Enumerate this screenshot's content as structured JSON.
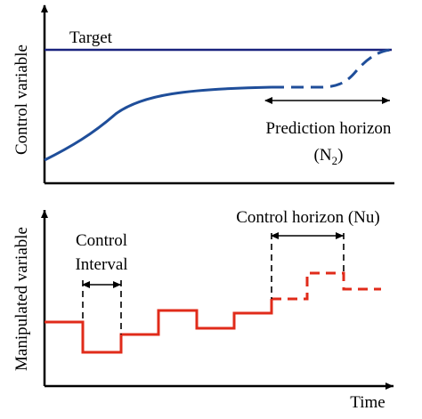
{
  "colors": {
    "target_line": "#1a237e",
    "control_curve": "#1f4e9a",
    "manipulated_signal": "#e02b1a",
    "annotation": "#000000"
  },
  "top_panel": {
    "y_axis_label": "Control variable",
    "target_label": "Target",
    "prediction_label_line1": "Prediction horizon",
    "prediction_label_n": "(N",
    "prediction_label_sub": "2",
    "prediction_label_close": ")"
  },
  "bottom_panel": {
    "y_axis_label": "Manipulated variable",
    "x_axis_label": "Time",
    "control_interval_line1": "Control",
    "control_interval_line2": "Interval",
    "control_horizon_label": "Control horizon (Nu)"
  }
}
